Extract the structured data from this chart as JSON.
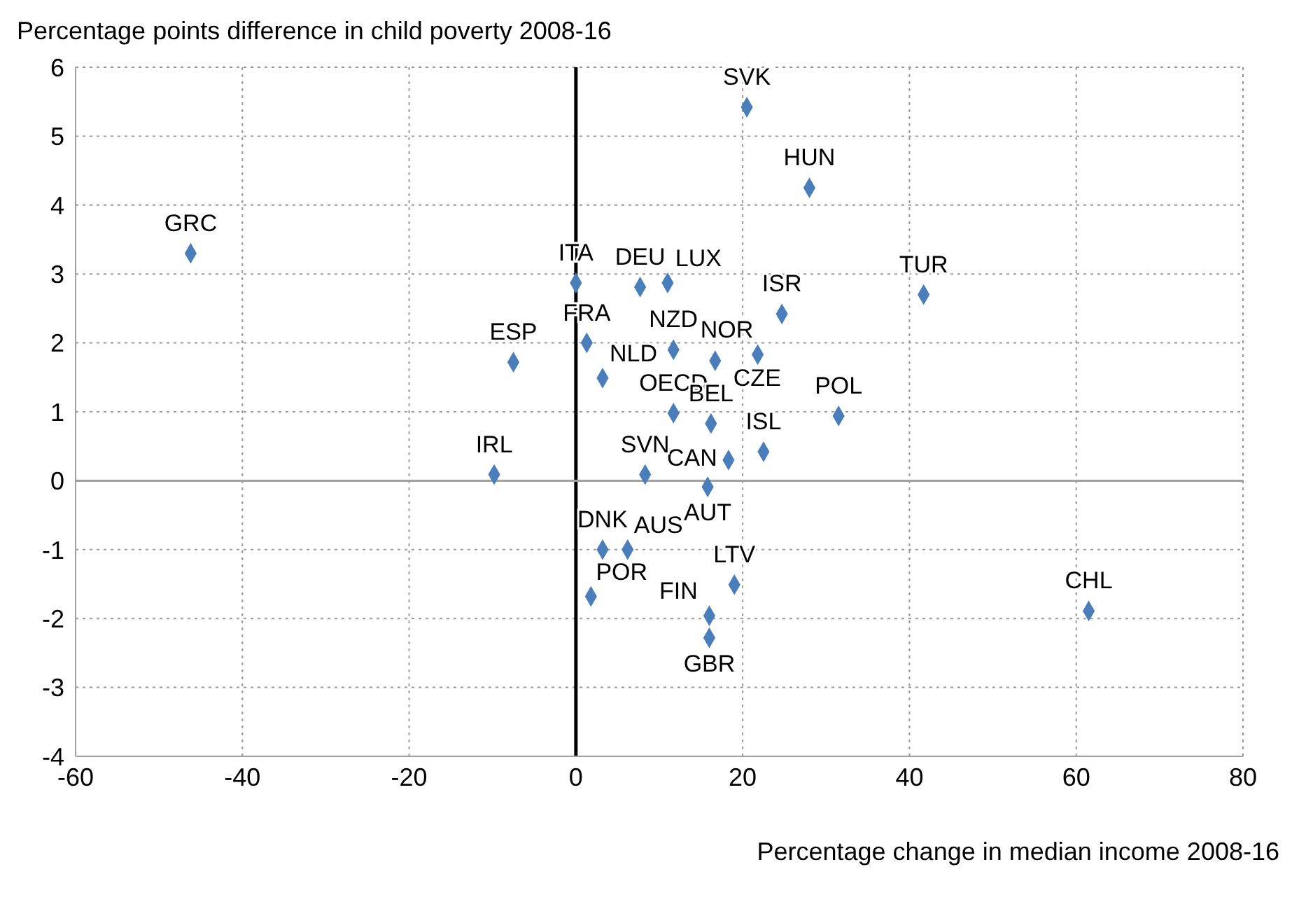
{
  "chart_data": {
    "type": "scatter",
    "ylabel": "Percentage points difference in child poverty 2008-16",
    "xlabel": "Percentage change in median income 2008-16",
    "series": [
      {
        "color": "#4a7ebb",
        "x": [
          -46.2,
          -7.5,
          -9.8,
          0,
          1.3,
          3.2,
          11.7,
          7.7,
          11,
          11.7,
          16.7,
          21.8,
          24.7,
          20.5,
          28,
          41.7,
          31.5,
          22.5,
          18.3,
          8.3,
          15.8,
          3.2,
          6.2,
          19,
          1.8,
          16,
          16,
          61.5,
          16.2
        ],
        "values": [
          3.3,
          1.72,
          0.09,
          2.87,
          2.0,
          1.49,
          0.98,
          2.81,
          2.87,
          1.9,
          1.74,
          1.83,
          2.42,
          5.42,
          4.25,
          2.7,
          0.94,
          0.42,
          0.3,
          0.09,
          -0.09,
          -1.0,
          -1.0,
          -1.51,
          -1.68,
          -1.96,
          -2.28,
          -1.89,
          0.83
        ]
      }
    ],
    "annotations": [
      {
        "text": "GRC",
        "x": -46.2,
        "y": 3.3
      },
      {
        "text": "ESP",
        "x": -7.5,
        "y": 1.72
      },
      {
        "text": "IRL",
        "x": -9.8,
        "y": 0.09
      },
      {
        "text": "ITA",
        "x": 0,
        "y": 2.87
      },
      {
        "text": "FRA",
        "x": 1.3,
        "y": 2.0
      },
      {
        "text": "NLD",
        "x": 3.2,
        "y": 1.49
      },
      {
        "text": "OECD",
        "x": 11.7,
        "y": 0.98
      },
      {
        "text": "DEU",
        "x": 7.7,
        "y": 2.81
      },
      {
        "text": "LUX",
        "x": 11,
        "y": 2.87
      },
      {
        "text": "NZD",
        "x": 11.7,
        "y": 1.9
      },
      {
        "text": "CZE",
        "x": 16.7,
        "y": 1.74
      },
      {
        "text": "NOR",
        "x": 21.8,
        "y": 1.83
      },
      {
        "text": "ISR",
        "x": 24.7,
        "y": 2.42
      },
      {
        "text": "SVK",
        "x": 20.5,
        "y": 5.42
      },
      {
        "text": "HUN",
        "x": 28,
        "y": 4.25
      },
      {
        "text": "TUR",
        "x": 41.7,
        "y": 2.7
      },
      {
        "text": "POL",
        "x": 31.5,
        "y": 0.94
      },
      {
        "text": "ISL",
        "x": 22.5,
        "y": 0.42
      },
      {
        "text": "CAN",
        "x": 18.3,
        "y": 0.3
      },
      {
        "text": "SVN",
        "x": 8.3,
        "y": 0.09
      },
      {
        "text": "AUT",
        "x": 15.8,
        "y": -0.09
      },
      {
        "text": "DNK",
        "x": 3.2,
        "y": -1.0
      },
      {
        "text": "AUS",
        "x": 6.2,
        "y": -1.0
      },
      {
        "text": "LTV",
        "x": 19,
        "y": -1.51
      },
      {
        "text": "POR",
        "x": 1.8,
        "y": -1.68
      },
      {
        "text": "FIN",
        "x": 16,
        "y": -1.96
      },
      {
        "text": "GBR",
        "x": 16,
        "y": -2.28
      },
      {
        "text": "CHL",
        "x": 61.5,
        "y": -1.89
      },
      {
        "text": "BEL",
        "x": 16.2,
        "y": 0.83
      }
    ],
    "xlim": [
      -60,
      80
    ],
    "xticks": [
      -60,
      -40,
      -20,
      0,
      20,
      40,
      60,
      80
    ],
    "ylim": [
      -4,
      6
    ],
    "yticks": [
      -4,
      -3,
      -2,
      -1,
      0,
      1,
      2,
      3,
      4,
      5,
      6
    ],
    "grid": true,
    "marker": "diamond",
    "ref_lines": [
      {
        "axis": "x",
        "value": 0,
        "color": "#000000"
      },
      {
        "axis": "y",
        "value": 0,
        "color": "#a0a0a0"
      }
    ]
  }
}
